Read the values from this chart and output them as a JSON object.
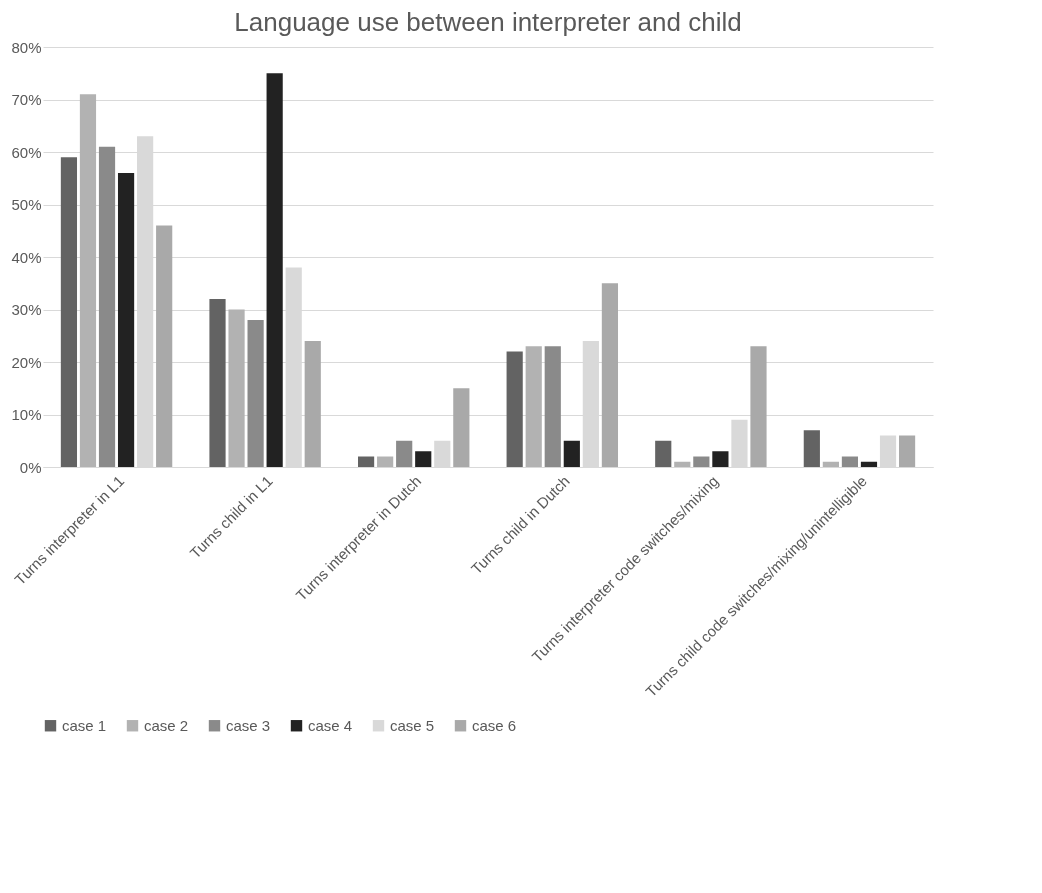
{
  "chart_data": {
    "type": "bar",
    "title": "Language use between interpreter and child",
    "categories": [
      "Turns interpreter in L1",
      "Turns child in L1",
      "Turns interpreter in Dutch",
      "Turns child in Dutch",
      "Turns interpreter code switches/mixing",
      "Turns child code switches/mixing/unintelligible"
    ],
    "series": [
      {
        "name": "case 1",
        "color": "#636363",
        "values": [
          59,
          32,
          2,
          22,
          5,
          7
        ]
      },
      {
        "name": "case 2",
        "color": "#b2b2b2",
        "values": [
          71,
          30,
          2,
          23,
          1,
          1
        ]
      },
      {
        "name": "case 3",
        "color": "#8a8a8a",
        "values": [
          61,
          28,
          5,
          23,
          2,
          2
        ]
      },
      {
        "name": "case 4",
        "color": "#222222",
        "values": [
          56,
          75,
          3,
          5,
          3,
          1
        ]
      },
      {
        "name": "case 5",
        "color": "#d9d9d9",
        "values": [
          63,
          38,
          5,
          24,
          9,
          6
        ]
      },
      {
        "name": "case 6",
        "color": "#a9a9a9",
        "values": [
          46,
          24,
          15,
          35,
          23,
          6
        ]
      }
    ],
    "ylim": [
      0,
      80
    ],
    "yticks": [
      {
        "value": 0,
        "label": "0%"
      },
      {
        "value": 10,
        "label": "10%"
      },
      {
        "value": 20,
        "label": "20%"
      },
      {
        "value": 30,
        "label": "30%"
      },
      {
        "value": 40,
        "label": "40%"
      },
      {
        "value": 50,
        "label": "50%"
      },
      {
        "value": 60,
        "label": "60%"
      },
      {
        "value": 70,
        "label": "70%"
      },
      {
        "value": 80,
        "label": "80%"
      }
    ],
    "grid": "y",
    "legend": "bottom"
  }
}
